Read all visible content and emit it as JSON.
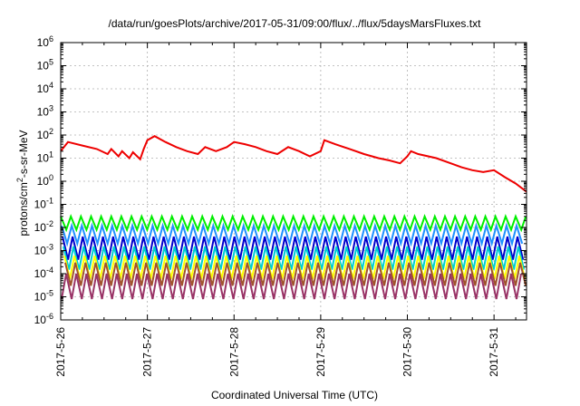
{
  "chart_data": {
    "type": "line",
    "title": "/data/run/goesPlots/archive/2017-05-31/09:00/flux/../flux/5daysMarsFluxes.txt",
    "xlabel": "Coordinated Universal Time (UTC)",
    "ylabel": {
      "base": "protons/cm",
      "sup": "2",
      "rest": "-s-sr-MeV"
    },
    "y_scale": "log",
    "ylim": [
      1e-06,
      1000000.0
    ],
    "y_ticks": [
      {
        "exp": "-6"
      },
      {
        "exp": "-5"
      },
      {
        "exp": "-4"
      },
      {
        "exp": "-3"
      },
      {
        "exp": "-2"
      },
      {
        "exp": "-1"
      },
      {
        "exp": "0"
      },
      {
        "exp": "1"
      },
      {
        "exp": "2"
      },
      {
        "exp": "3"
      },
      {
        "exp": "4"
      },
      {
        "exp": "5"
      },
      {
        "exp": "6"
      }
    ],
    "xlim": [
      "2017-05-26 00:00",
      "2017-05-31 09:00"
    ],
    "x_ticks": [
      "2017-5-26",
      "2017-5-27",
      "2017-5-28",
      "2017-5-29",
      "2017-5-30",
      "2017-5-31"
    ],
    "grid": true,
    "legend": "none",
    "series": [
      {
        "color": "#ee0000",
        "x": [
          "2017-05-26 00:00",
          "2017-05-26 02:00",
          "2017-05-26 06:00",
          "2017-05-26 10:00",
          "2017-05-26 13:00",
          "2017-05-26 14:00",
          "2017-05-26 16:00",
          "2017-05-26 17:00",
          "2017-05-26 19:00",
          "2017-05-26 20:00",
          "2017-05-26 22:00",
          "2017-05-26 23:00",
          "2017-05-27 00:00",
          "2017-05-27 02:00",
          "2017-05-27 05:00",
          "2017-05-27 08:00",
          "2017-05-27 11:00",
          "2017-05-27 14:00",
          "2017-05-27 16:00",
          "2017-05-27 19:00",
          "2017-05-27 22:00",
          "2017-05-28 00:00",
          "2017-05-28 03:00",
          "2017-05-28 06:00",
          "2017-05-28 09:00",
          "2017-05-28 12:00",
          "2017-05-28 15:00",
          "2017-05-28 18:00",
          "2017-05-28 21:00",
          "2017-05-29 00:00",
          "2017-05-29 01:00",
          "2017-05-29 04:00",
          "2017-05-29 08:00",
          "2017-05-29 12:00",
          "2017-05-29 16:00",
          "2017-05-29 19:00",
          "2017-05-29 22:00",
          "2017-05-30 00:00",
          "2017-05-30 01:00",
          "2017-05-30 03:00",
          "2017-05-30 08:00",
          "2017-05-30 12:00",
          "2017-05-30 15:00",
          "2017-05-30 18:00",
          "2017-05-30 21:00",
          "2017-05-31 00:00",
          "2017-05-31 03:00",
          "2017-05-31 06:00",
          "2017-05-31 09:00"
        ],
        "y": [
          20,
          50,
          35,
          25,
          15,
          25,
          12,
          20,
          10,
          18,
          9,
          25,
          60,
          90,
          50,
          30,
          20,
          15,
          30,
          20,
          30,
          50,
          40,
          30,
          20,
          15,
          30,
          20,
          12,
          20,
          60,
          40,
          25,
          15,
          10,
          8,
          6,
          12,
          20,
          15,
          10,
          6,
          4,
          3,
          2.5,
          3,
          1.5,
          0.8,
          0.35
        ]
      },
      {
        "color": "#00ee00",
        "high": 0.03,
        "low": 0.008
      },
      {
        "color": "#1e90ff",
        "high": 0.012,
        "low": 0.002
      },
      {
        "color": "#0000cc",
        "high": 0.004,
        "low": 0.0004
      },
      {
        "color": "#00ced1",
        "high": 0.0015,
        "low": 0.00015
      },
      {
        "color": "#ffff00",
        "high": 0.0006,
        "low": 6e-05
      },
      {
        "color": "#a0522d",
        "high": 0.0003,
        "low": 3e-05
      },
      {
        "color": "#993366",
        "high": 0.0001,
        "low": 8e-06
      }
    ]
  }
}
